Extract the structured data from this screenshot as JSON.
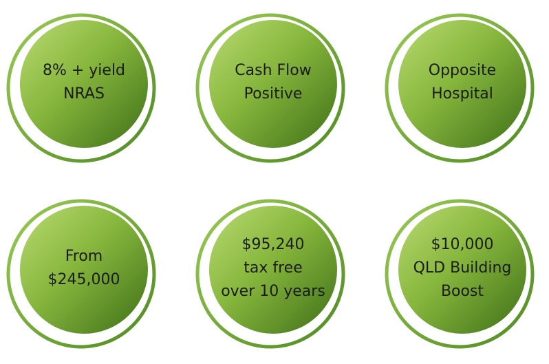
{
  "items": [
    {
      "lines": [
        "8% + yield",
        "NRAS"
      ]
    },
    {
      "lines": [
        "Cash Flow",
        "Positive"
      ]
    },
    {
      "lines": [
        "Opposite",
        "Hospital"
      ]
    },
    {
      "lines": [
        "From",
        "$245,000"
      ]
    },
    {
      "lines": [
        "$95,240",
        "tax free",
        "over 10 years"
      ]
    },
    {
      "lines": [
        "$10,000",
        "QLD Building",
        "Boost"
      ]
    }
  ]
}
